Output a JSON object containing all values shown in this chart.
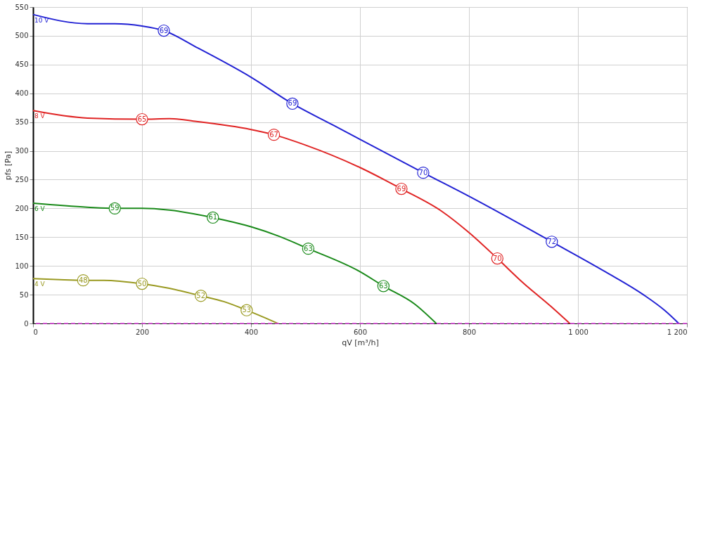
{
  "chart_data": {
    "type": "line",
    "xlabel": "qV [m³/h]",
    "ylabel": "pfs [Pa]",
    "xlim": [
      0,
      1200
    ],
    "ylim": [
      0,
      550
    ],
    "xticks": [
      0,
      200,
      400,
      600,
      800,
      {
        "value": 1000,
        "label": "1 000"
      },
      {
        "value": 1200,
        "label": "1 200"
      }
    ],
    "yticks": [
      0,
      50,
      100,
      150,
      200,
      250,
      300,
      350,
      400,
      450,
      500,
      550
    ],
    "grid": true,
    "marker": "none",
    "line_style": "solid",
    "ref_lines": [
      {
        "axis": "y",
        "value": 0,
        "color": "#e040e0",
        "line_style": "dashed"
      }
    ],
    "series": [
      {
        "name": "10 V",
        "color": "#2222d4",
        "x": [
          0,
          100,
          150,
          200,
          240,
          300,
          400,
          476,
          550,
          716,
          800,
          952,
          1050,
          1120,
          1160,
          1185
        ],
        "values": [
          537,
          521,
          521,
          517,
          509,
          480,
          428,
          382,
          345,
          262,
          221,
          142,
          90,
          50,
          22,
          0
        ]
      },
      {
        "name": "8 V",
        "color": "#e02424",
        "x": [
          0,
          100,
          200,
          250,
          300,
          400,
          442,
          500,
          600,
          676,
          750,
          800,
          852,
          900,
          950,
          985
        ],
        "values": [
          370,
          357,
          355,
          356,
          351,
          337,
          328,
          310,
          271,
          234,
          195,
          158,
          113,
          70,
          30,
          0
        ]
      },
      {
        "name": "6 V",
        "color": "#1a8a1a",
        "x": [
          0,
          100,
          150,
          200,
          250,
          330,
          400,
          450,
          505,
          600,
          643,
          700,
          740
        ],
        "values": [
          209,
          202,
          200,
          200,
          197,
          184,
          168,
          152,
          130,
          90,
          65,
          34,
          0
        ]
      },
      {
        "name": "4 V",
        "color": "#9a9a22",
        "x": [
          0,
          50,
          92,
          130,
          200,
          250,
          308,
          350,
          392,
          420,
          449
        ],
        "values": [
          78,
          76,
          75,
          75,
          69,
          61,
          48,
          38,
          23,
          12,
          0
        ]
      }
    ],
    "annotations": [
      {
        "text": "69",
        "x": 240,
        "y": 509
      },
      {
        "text": "69",
        "x": 476,
        "y": 382
      },
      {
        "text": "70",
        "x": 716,
        "y": 262
      },
      {
        "text": "72",
        "x": 952,
        "y": 142
      },
      {
        "text": "65",
        "x": 200,
        "y": 355
      },
      {
        "text": "67",
        "x": 442,
        "y": 328
      },
      {
        "text": "69",
        "x": 676,
        "y": 234
      },
      {
        "text": "70",
        "x": 852,
        "y": 113
      },
      {
        "text": "59",
        "x": 150,
        "y": 200
      },
      {
        "text": "61",
        "x": 330,
        "y": 184
      },
      {
        "text": "63",
        "x": 505,
        "y": 130
      },
      {
        "text": "63",
        "x": 643,
        "y": 65
      },
      {
        "text": "48",
        "x": 92,
        "y": 75
      },
      {
        "text": "50",
        "x": 200,
        "y": 69
      },
      {
        "text": "52",
        "x": 308,
        "y": 48
      },
      {
        "text": "53",
        "x": 392,
        "y": 23
      }
    ]
  }
}
